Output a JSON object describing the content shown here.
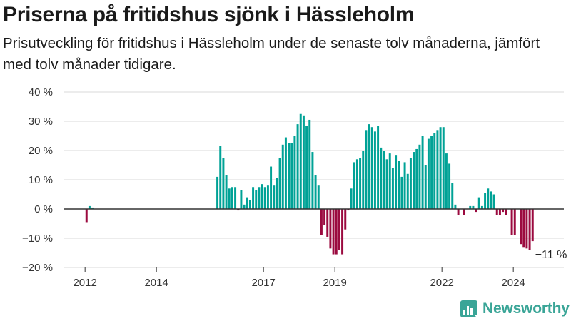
{
  "title": "Priserna på fritidshus sjönk i Hässleholm",
  "subtitle": "Prisutveckling för fritidshus i Hässleholm under de senaste tolv månaderna, jämfört med tolv månader tidigare.",
  "brand": {
    "name": "Newsworthy",
    "icon": "newsworthy-logo-icon",
    "color": "#3aa597"
  },
  "colors": {
    "positive": "#00a296",
    "negative": "#9b0a3f",
    "grid": "#d9d9d9",
    "zero": "#333333"
  },
  "chart_data": {
    "type": "bar",
    "unit": "%",
    "ylim": [
      -20,
      40
    ],
    "yticks": [
      -20,
      -10,
      0,
      10,
      20,
      30,
      40
    ],
    "ytick_labels": [
      "−20 %",
      "−10 %",
      "0 %",
      "10 %",
      "20 %",
      "30 %",
      "40 %"
    ],
    "xtick_labels": [
      "2012",
      "2014",
      "2017",
      "2019",
      "2022",
      "2024"
    ],
    "xtick_dates": [
      "2012-01",
      "2014-01",
      "2017-01",
      "2019-01",
      "2022-01",
      "2024-01"
    ],
    "x_range": [
      "2011-06",
      "2025-06"
    ],
    "grid": true,
    "legend": "none",
    "annotation": {
      "text": "−11 %",
      "date": "2025-01",
      "value": -11
    },
    "series": [
      {
        "points": [
          [
            "2012-01",
            -4.5
          ],
          [
            "2012-02",
            1
          ],
          [
            "2012-03",
            0.5
          ],
          [
            "2015-09",
            11
          ],
          [
            "2015-10",
            21.5
          ],
          [
            "2015-11",
            17.5
          ],
          [
            "2015-12",
            11.5
          ],
          [
            "2016-01",
            7
          ],
          [
            "2016-02",
            7.5
          ],
          [
            "2016-03",
            7.5
          ],
          [
            "2016-04",
            -0.5
          ],
          [
            "2016-05",
            6.5
          ],
          [
            "2016-06",
            1.5
          ],
          [
            "2016-07",
            4
          ],
          [
            "2016-08",
            3
          ],
          [
            "2016-09",
            7.5
          ],
          [
            "2016-10",
            6.5
          ],
          [
            "2016-11",
            7.5
          ],
          [
            "2016-12",
            8.5
          ],
          [
            "2017-01",
            7.5
          ],
          [
            "2017-02",
            8
          ],
          [
            "2017-03",
            14.5
          ],
          [
            "2017-04",
            8
          ],
          [
            "2017-05",
            10.5
          ],
          [
            "2017-06",
            17.5
          ],
          [
            "2017-07",
            22
          ],
          [
            "2017-08",
            24.5
          ],
          [
            "2017-09",
            22.5
          ],
          [
            "2017-10",
            22.5
          ],
          [
            "2017-11",
            25
          ],
          [
            "2017-12",
            29
          ],
          [
            "2018-01",
            32.5
          ],
          [
            "2018-02",
            32
          ],
          [
            "2018-03",
            28.5
          ],
          [
            "2018-04",
            30.5
          ],
          [
            "2018-05",
            19.5
          ],
          [
            "2018-06",
            11.5
          ],
          [
            "2018-07",
            8
          ],
          [
            "2018-08",
            -9
          ],
          [
            "2018-09",
            -5.5
          ],
          [
            "2018-10",
            -9.5
          ],
          [
            "2018-11",
            -13.5
          ],
          [
            "2018-12",
            -15.5
          ],
          [
            "2019-01",
            -15.5
          ],
          [
            "2019-02",
            -14
          ],
          [
            "2019-03",
            -15.5
          ],
          [
            "2019-04",
            -7
          ],
          [
            "2019-05",
            -0.5
          ],
          [
            "2019-06",
            7
          ],
          [
            "2019-07",
            16
          ],
          [
            "2019-08",
            17
          ],
          [
            "2019-09",
            17.5
          ],
          [
            "2019-10",
            20
          ],
          [
            "2019-11",
            27
          ],
          [
            "2019-12",
            29
          ],
          [
            "2020-01",
            28
          ],
          [
            "2020-02",
            26.5
          ],
          [
            "2020-03",
            28.5
          ],
          [
            "2020-04",
            21
          ],
          [
            "2020-05",
            20
          ],
          [
            "2020-06",
            17
          ],
          [
            "2020-07",
            19
          ],
          [
            "2020-08",
            14
          ],
          [
            "2020-09",
            18.5
          ],
          [
            "2020-10",
            16.5
          ],
          [
            "2020-11",
            11
          ],
          [
            "2020-12",
            16
          ],
          [
            "2021-01",
            12
          ],
          [
            "2021-02",
            17.5
          ],
          [
            "2021-03",
            19.5
          ],
          [
            "2021-04",
            20.5
          ],
          [
            "2021-05",
            22
          ],
          [
            "2021-06",
            25
          ],
          [
            "2021-07",
            15
          ],
          [
            "2021-08",
            24
          ],
          [
            "2021-09",
            25
          ],
          [
            "2021-10",
            26
          ],
          [
            "2021-11",
            27
          ],
          [
            "2021-12",
            28
          ],
          [
            "2022-01",
            28
          ],
          [
            "2022-02",
            19
          ],
          [
            "2022-03",
            15.5
          ],
          [
            "2022-04",
            9
          ],
          [
            "2022-05",
            1.5
          ],
          [
            "2022-06",
            -2
          ],
          [
            "2022-08",
            -2
          ],
          [
            "2022-10",
            1
          ],
          [
            "2022-11",
            1
          ],
          [
            "2022-12",
            -1
          ],
          [
            "2023-01",
            4
          ],
          [
            "2023-02",
            1
          ],
          [
            "2023-03",
            5.5
          ],
          [
            "2023-04",
            7
          ],
          [
            "2023-05",
            6
          ],
          [
            "2023-06",
            5
          ],
          [
            "2023-07",
            -2
          ],
          [
            "2023-08",
            -2
          ],
          [
            "2023-09",
            -1
          ],
          [
            "2023-10",
            -2
          ],
          [
            "2023-12",
            -9
          ],
          [
            "2024-01",
            -9
          ],
          [
            "2024-03",
            -12
          ],
          [
            "2024-04",
            -13
          ],
          [
            "2024-05",
            -13.5
          ],
          [
            "2024-06",
            -14
          ],
          [
            "2024-07",
            -11
          ]
        ]
      }
    ]
  }
}
